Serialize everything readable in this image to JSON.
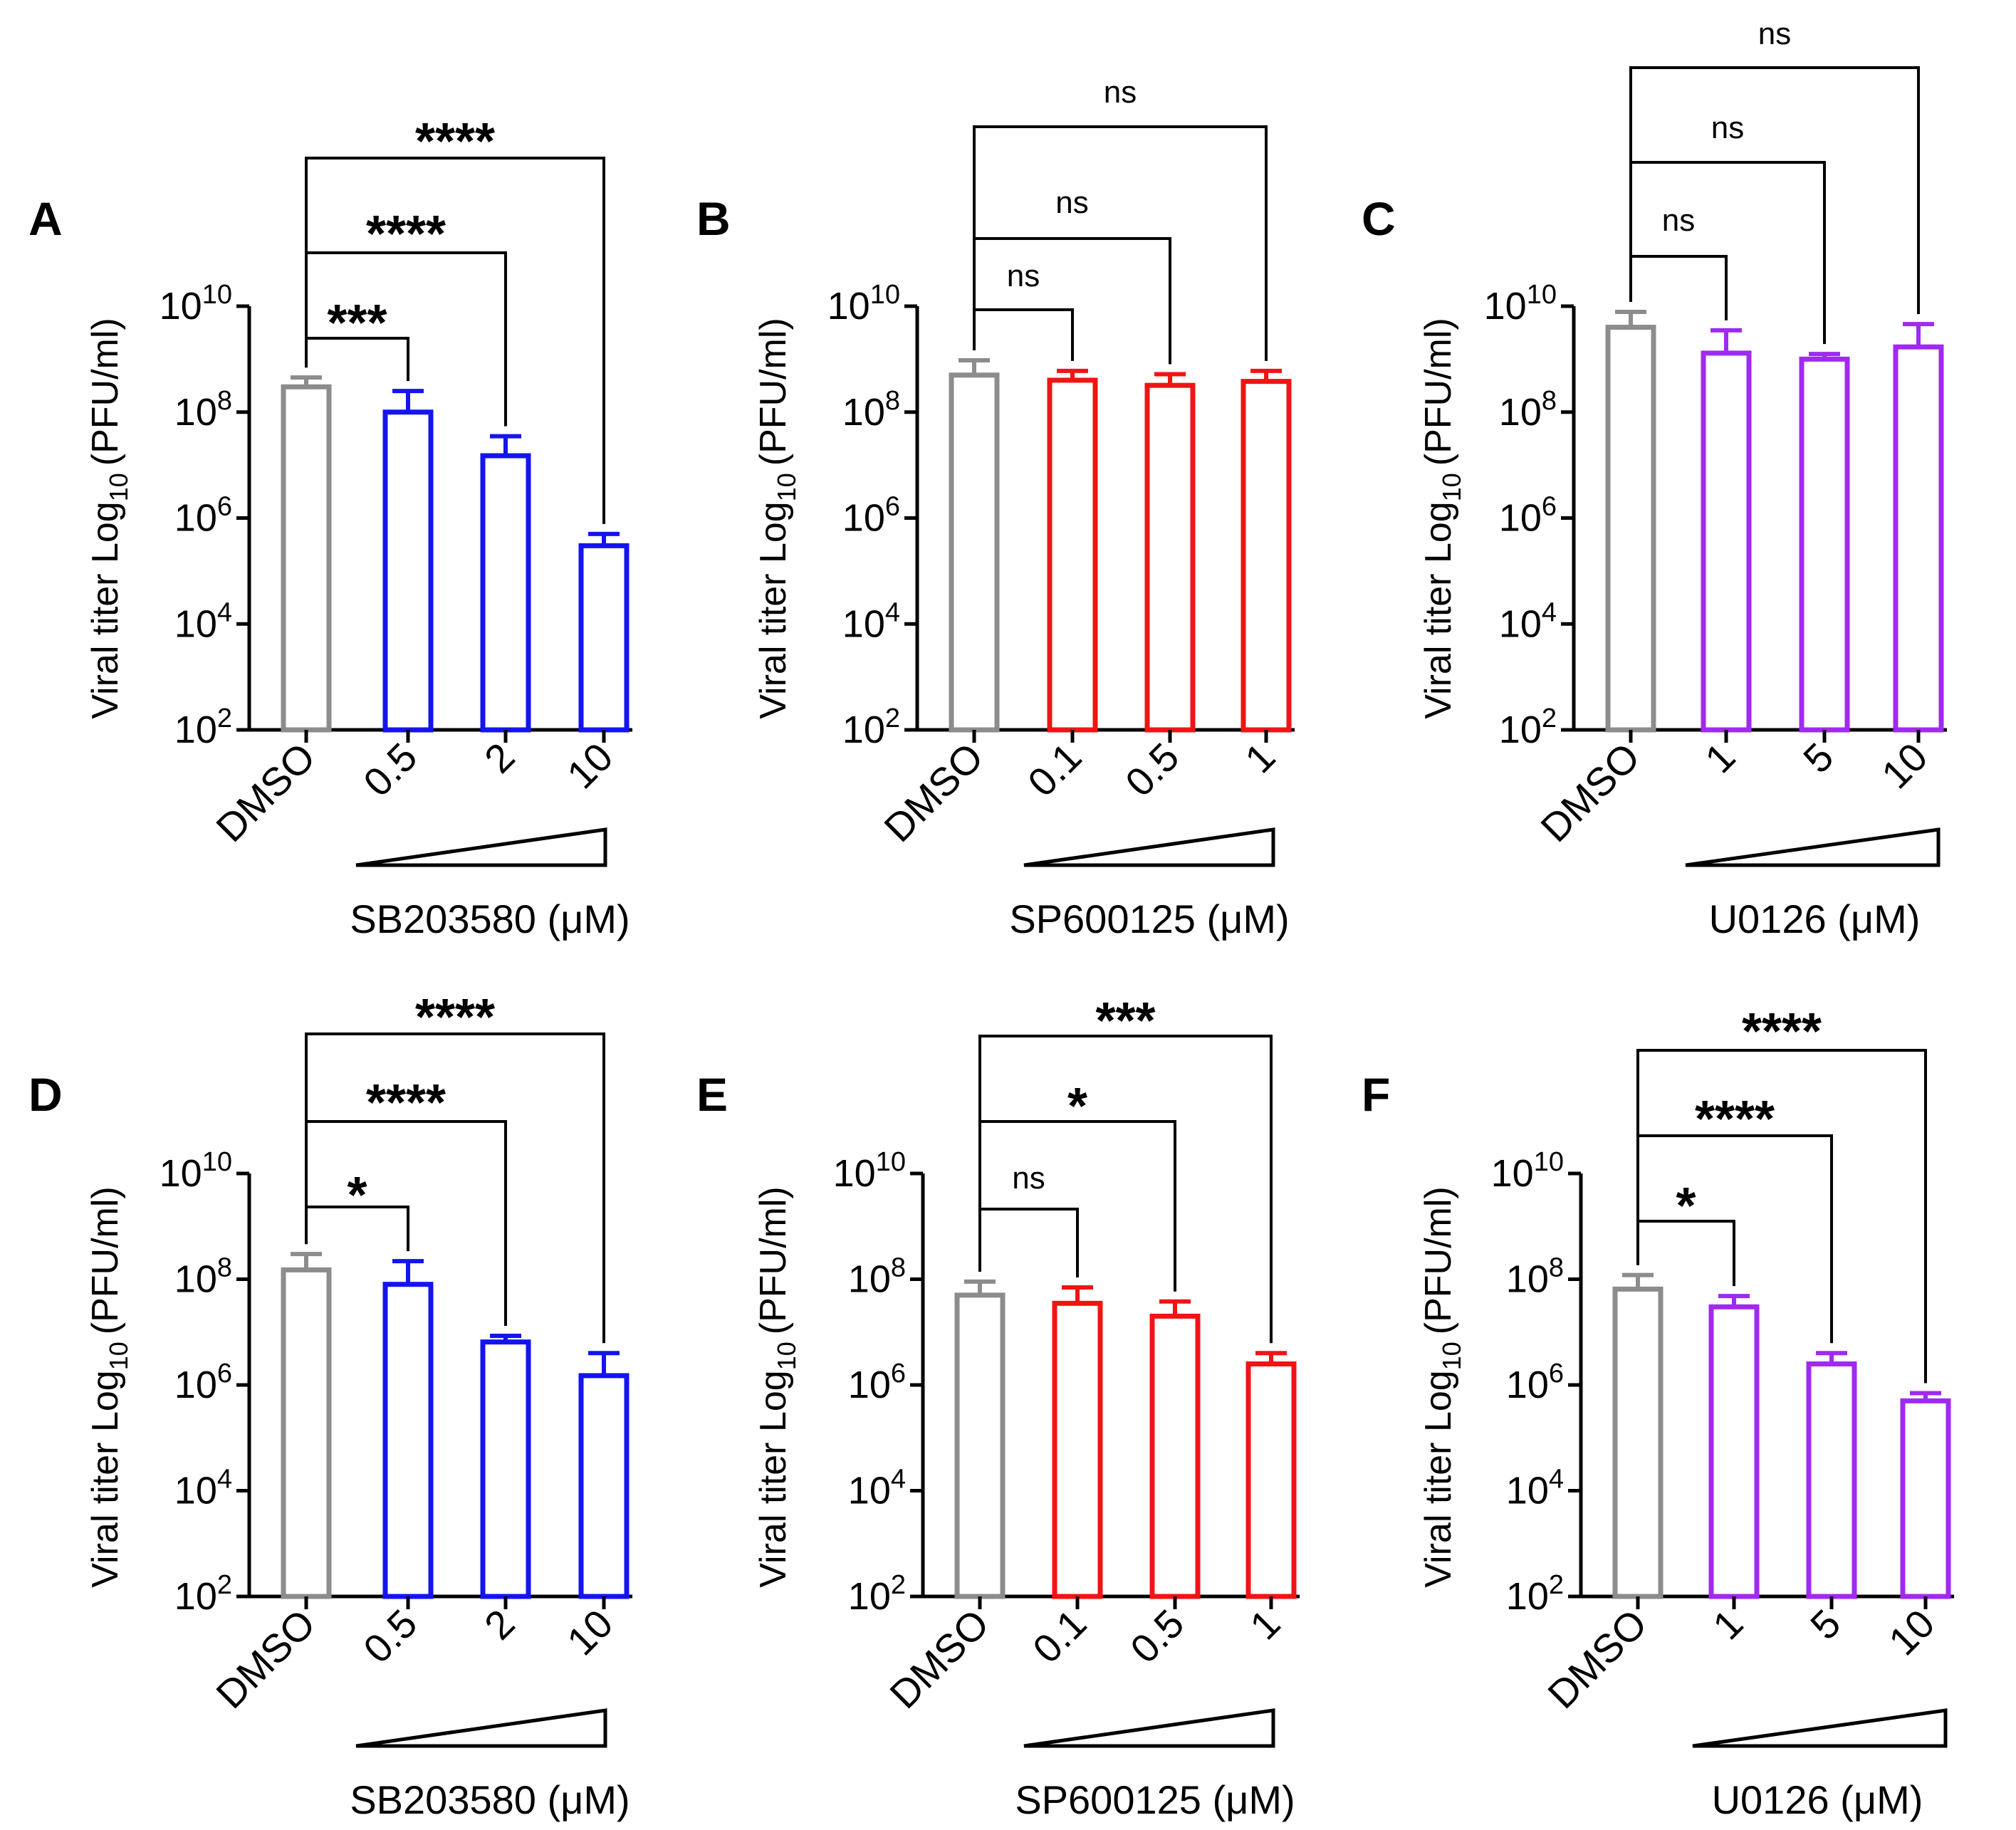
{
  "figure": {
    "background": "#ffffff",
    "axis_color": "#000000"
  },
  "chart_data": [
    {
      "panel": "A",
      "type": "bar",
      "scale": "log10",
      "ylabel": "Viral titer Log",
      "ylabel_sub": "10",
      "ylabel_units": "(PFU/ml)",
      "ylim": [
        100,
        10000000000
      ],
      "yticks": [
        {
          "base": "10",
          "exp": "2"
        },
        {
          "base": "10",
          "exp": "4"
        },
        {
          "base": "10",
          "exp": "6"
        },
        {
          "base": "10",
          "exp": "8"
        },
        {
          "base": "10",
          "exp": "10"
        }
      ],
      "xlabel": "SB203580 (μM)",
      "categories": [
        "DMSO",
        "0.5",
        "2",
        "10"
      ],
      "values": [
        300000000,
        100000000,
        15000000,
        300000
      ],
      "errors_upper": [
        450000000,
        250000000,
        35000000,
        500000
      ],
      "colors": [
        "#8c8c8c",
        "#1414f0",
        "#1414f0",
        "#1414f0"
      ],
      "comparisons": [
        {
          "vs": "0.5",
          "label": "***"
        },
        {
          "vs": "2",
          "label": "****"
        },
        {
          "vs": "10",
          "label": "****"
        }
      ]
    },
    {
      "panel": "B",
      "type": "bar",
      "scale": "log10",
      "ylabel": "Viral titer Log",
      "ylabel_sub": "10",
      "ylabel_units": "(PFU/ml)",
      "ylim": [
        100,
        10000000000
      ],
      "yticks": [
        {
          "base": "10",
          "exp": "2"
        },
        {
          "base": "10",
          "exp": "4"
        },
        {
          "base": "10",
          "exp": "6"
        },
        {
          "base": "10",
          "exp": "8"
        },
        {
          "base": "10",
          "exp": "10"
        }
      ],
      "xlabel": "SP600125 (μM)",
      "categories": [
        "DMSO",
        "0.1",
        "0.5",
        "1"
      ],
      "values": [
        500000000,
        400000000,
        320000000,
        380000000
      ],
      "errors_upper": [
        950000000,
        600000000,
        520000000,
        600000000
      ],
      "colors": [
        "#8c8c8c",
        "#f01414",
        "#f01414",
        "#f01414"
      ],
      "comparisons": [
        {
          "vs": "0.1",
          "label": "ns"
        },
        {
          "vs": "0.5",
          "label": "ns"
        },
        {
          "vs": "1",
          "label": "ns"
        }
      ]
    },
    {
      "panel": "C",
      "type": "bar",
      "scale": "log10",
      "ylabel": "Viral titer Log",
      "ylabel_sub": "10",
      "ylabel_units": "(PFU/ml)",
      "ylim": [
        100,
        10000000000
      ],
      "yticks": [
        {
          "base": "10",
          "exp": "2"
        },
        {
          "base": "10",
          "exp": "4"
        },
        {
          "base": "10",
          "exp": "6"
        },
        {
          "base": "10",
          "exp": "8"
        },
        {
          "base": "10",
          "exp": "10"
        }
      ],
      "xlabel": "U0126 (μM)",
      "categories": [
        "DMSO",
        "1",
        "5",
        "10"
      ],
      "values": [
        4000000000,
        1300000000,
        1000000000,
        1700000000
      ],
      "errors_upper": [
        7800000000,
        3500000000,
        1250000000,
        4600000000
      ],
      "colors": [
        "#8c8c8c",
        "#a02af0",
        "#a02af0",
        "#a02af0"
      ],
      "comparisons": [
        {
          "vs": "1",
          "label": "ns"
        },
        {
          "vs": "5",
          "label": "ns"
        },
        {
          "vs": "10",
          "label": "ns"
        }
      ]
    },
    {
      "panel": "D",
      "type": "bar",
      "scale": "log10",
      "ylabel": "Viral titer Log",
      "ylabel_sub": "10",
      "ylabel_units": "(PFU/ml)",
      "ylim": [
        100,
        10000000000
      ],
      "yticks": [
        {
          "base": "10",
          "exp": "2"
        },
        {
          "base": "10",
          "exp": "4"
        },
        {
          "base": "10",
          "exp": "6"
        },
        {
          "base": "10",
          "exp": "8"
        },
        {
          "base": "10",
          "exp": "10"
        }
      ],
      "xlabel": "SB203580 (μM)",
      "categories": [
        "DMSO",
        "0.5",
        "2",
        "10"
      ],
      "values": [
        150000000,
        80000000,
        6500000,
        1500000
      ],
      "errors_upper": [
        300000000,
        220000000,
        8500000,
        4000000
      ],
      "colors": [
        "#8c8c8c",
        "#1414f0",
        "#1414f0",
        "#1414f0"
      ],
      "comparisons": [
        {
          "vs": "0.5",
          "label": "*"
        },
        {
          "vs": "2",
          "label": "****"
        },
        {
          "vs": "10",
          "label": "****"
        }
      ]
    },
    {
      "panel": "E",
      "type": "bar",
      "scale": "log10",
      "ylabel": "Viral titer Log",
      "ylabel_sub": "10",
      "ylabel_units": "(PFU/ml)",
      "ylim": [
        100,
        10000000000
      ],
      "yticks": [
        {
          "base": "10",
          "exp": "2"
        },
        {
          "base": "10",
          "exp": "4"
        },
        {
          "base": "10",
          "exp": "6"
        },
        {
          "base": "10",
          "exp": "8"
        },
        {
          "base": "10",
          "exp": "10"
        }
      ],
      "xlabel": "SP600125 (μM)",
      "categories": [
        "DMSO",
        "0.1",
        "0.5",
        "1"
      ],
      "values": [
        50000000,
        35000000,
        20000000,
        2500000
      ],
      "errors_upper": [
        90000000,
        70000000,
        38000000,
        4000000
      ],
      "colors": [
        "#8c8c8c",
        "#f01414",
        "#f01414",
        "#f01414"
      ],
      "comparisons": [
        {
          "vs": "0.1",
          "label": "ns"
        },
        {
          "vs": "0.5",
          "label": "*"
        },
        {
          "vs": "1",
          "label": "***"
        }
      ]
    },
    {
      "panel": "F",
      "type": "bar",
      "scale": "log10",
      "ylabel": "Viral titer Log",
      "ylabel_sub": "10",
      "ylabel_units": "(PFU/ml)",
      "ylim": [
        100,
        10000000000
      ],
      "yticks": [
        {
          "base": "10",
          "exp": "2"
        },
        {
          "base": "10",
          "exp": "4"
        },
        {
          "base": "10",
          "exp": "6"
        },
        {
          "base": "10",
          "exp": "8"
        },
        {
          "base": "10",
          "exp": "10"
        }
      ],
      "xlabel": "U0126 (μM)",
      "categories": [
        "DMSO",
        "1",
        "5",
        "10"
      ],
      "values": [
        65000000,
        30000000,
        2500000,
        500000
      ],
      "errors_upper": [
        120000000,
        48000000,
        4000000,
        700000
      ],
      "colors": [
        "#8c8c8c",
        "#a02af0",
        "#a02af0",
        "#a02af0"
      ],
      "comparisons": [
        {
          "vs": "1",
          "label": "*"
        },
        {
          "vs": "5",
          "label": "****"
        },
        {
          "vs": "10",
          "label": "****"
        }
      ]
    }
  ]
}
